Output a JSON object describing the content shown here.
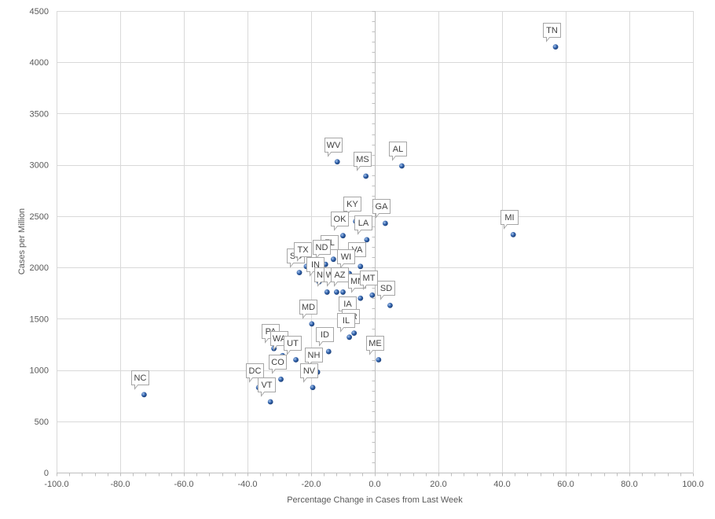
{
  "chart_data": {
    "type": "scatter",
    "title": "",
    "xlabel": "Percentage Change  in Cases from Last Week",
    "ylabel": "Cases per Million",
    "xlim": [
      -100,
      100
    ],
    "ylim": [
      0,
      4500
    ],
    "x_ticks": [
      "-100.0",
      "-80.0",
      "-60.0",
      "-40.0",
      "-20.0",
      "0.0",
      "20.0",
      "40.0",
      "60.0",
      "80.0",
      "100.0"
    ],
    "x_tick_values": [
      -100,
      -80,
      -60,
      -40,
      -20,
      0,
      20,
      40,
      60,
      80,
      100
    ],
    "y_ticks": [
      "0",
      "500",
      "1000",
      "1500",
      "2000",
      "2500",
      "3000",
      "3500",
      "4000",
      "4500"
    ],
    "y_tick_values": [
      0,
      500,
      1000,
      1500,
      2000,
      2500,
      3000,
      3500,
      4000,
      4500
    ],
    "grid": true,
    "marker_color": "#2e5fa8",
    "points": [
      {
        "label": "TN",
        "x": 56.8,
        "y": 4150
      },
      {
        "label": "WV",
        "x": -11.8,
        "y": 3030
      },
      {
        "label": "MS",
        "x": -2.8,
        "y": 2890
      },
      {
        "label": "AL",
        "x": 8.5,
        "y": 2990
      },
      {
        "label": "KY",
        "x": -6.0,
        "y": 2450
      },
      {
        "label": "GA",
        "x": 3.3,
        "y": 2430
      },
      {
        "label": "OK",
        "x": -10.0,
        "y": 2310
      },
      {
        "label": "LA",
        "x": -2.5,
        "y": 2270
      },
      {
        "label": "MI",
        "x": 43.5,
        "y": 2320
      },
      {
        "label": "FL",
        "x": -13.0,
        "y": 2080
      },
      {
        "label": "SC",
        "x": -23.7,
        "y": 1950
      },
      {
        "label": "TX",
        "x": -21.5,
        "y": 2010
      },
      {
        "label": "ND",
        "x": -15.5,
        "y": 2030
      },
      {
        "label": "VA",
        "x": -4.5,
        "y": 2010
      },
      {
        "label": "WI",
        "x": -8.0,
        "y": 1940
      },
      {
        "label": "IN",
        "x": -17.5,
        "y": 1860
      },
      {
        "label": "NM",
        "x": -15.0,
        "y": 1760
      },
      {
        "label": "WY",
        "x": -12.0,
        "y": 1760
      },
      {
        "label": "AZ",
        "x": -10.0,
        "y": 1760
      },
      {
        "label": "MN",
        "x": -4.5,
        "y": 1700
      },
      {
        "label": "MT",
        "x": -0.8,
        "y": 1730
      },
      {
        "label": "SD",
        "x": 4.8,
        "y": 1630
      },
      {
        "label": "IA",
        "x": -7.5,
        "y": 1480
      },
      {
        "label": "MD",
        "x": -19.8,
        "y": 1450
      },
      {
        "label": "OR",
        "x": -6.5,
        "y": 1360
      },
      {
        "label": "IL",
        "x": -8.0,
        "y": 1320
      },
      {
        "label": "PA",
        "x": -31.7,
        "y": 1210
      },
      {
        "label": "WA",
        "x": -29.0,
        "y": 1140
      },
      {
        "label": "UT",
        "x": -24.8,
        "y": 1100
      },
      {
        "label": "ID",
        "x": -14.5,
        "y": 1180
      },
      {
        "label": "ME",
        "x": 1.2,
        "y": 1100
      },
      {
        "label": "NH",
        "x": -18.0,
        "y": 980
      },
      {
        "label": "CO",
        "x": -29.5,
        "y": 910
      },
      {
        "label": "NV",
        "x": -19.5,
        "y": 830
      },
      {
        "label": "DC",
        "x": -36.5,
        "y": 830
      },
      {
        "label": "VT",
        "x": -32.8,
        "y": 690
      },
      {
        "label": "NC",
        "x": -72.5,
        "y": 760
      }
    ]
  }
}
